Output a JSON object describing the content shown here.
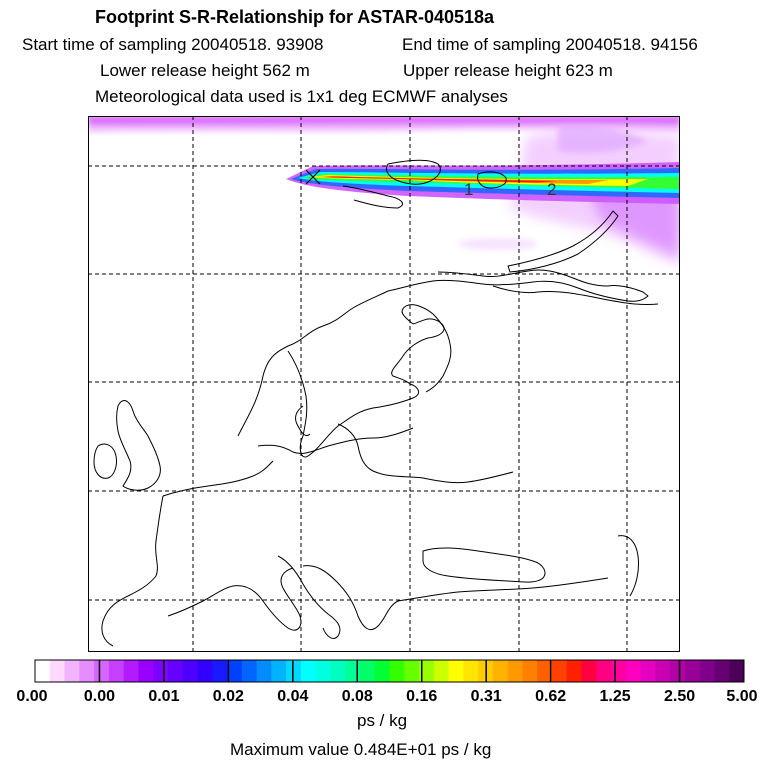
{
  "header": {
    "title": "Footprint S-R-Relationship for ASTAR-040518a",
    "start_time": "Start time of sampling 20040518. 93908",
    "end_time": "End time of sampling 20040518. 94156",
    "lower_height": "Lower release height  562 m",
    "upper_height": "Upper release height  623 m",
    "met_data": "Meteorological data used is 1x1 deg ECMWF analyses"
  },
  "map": {
    "markers": [
      "1",
      "2"
    ],
    "colors": {
      "land_outline": "#000000",
      "grid": "#000000",
      "plume_outer": "#cc66ff",
      "plume_core": "#ff0000"
    }
  },
  "legend": {
    "tick_labels": [
      "0.00",
      "0.00",
      "0.01",
      "0.02",
      "0.04",
      "0.08",
      "0.16",
      "0.31",
      "0.62",
      "1.25",
      "2.50",
      "5.00"
    ],
    "colors": [
      "#ffffff",
      "#ffd9ff",
      "#f2b3ff",
      "#e58cff",
      "#d666ff",
      "#c740ff",
      "#b31aff",
      "#9900ff",
      "#8000ff",
      "#6600ff",
      "#4d00ff",
      "#3300ff",
      "#1a1aff",
      "#0040ff",
      "#0066ff",
      "#008cff",
      "#00b3ff",
      "#00d9ff",
      "#00ffff",
      "#00ffe0",
      "#00ffbf",
      "#00ff99",
      "#00ff66",
      "#00ff33",
      "#33ff00",
      "#66ff00",
      "#99ff00",
      "#ccff00",
      "#ffff00",
      "#ffe600",
      "#ffcc00",
      "#ffb300",
      "#ff9900",
      "#ff8000",
      "#ff6000",
      "#ff4000",
      "#ff2000",
      "#ff0040",
      "#ff0080",
      "#ff00a0",
      "#ff00c0",
      "#e600c0",
      "#cc00b3",
      "#b300a6",
      "#990099",
      "#80008c",
      "#660073",
      "#4d0059"
    ],
    "units": "ps / kg",
    "max_value": "Maximum value  0.484E+01 ps / kg"
  }
}
